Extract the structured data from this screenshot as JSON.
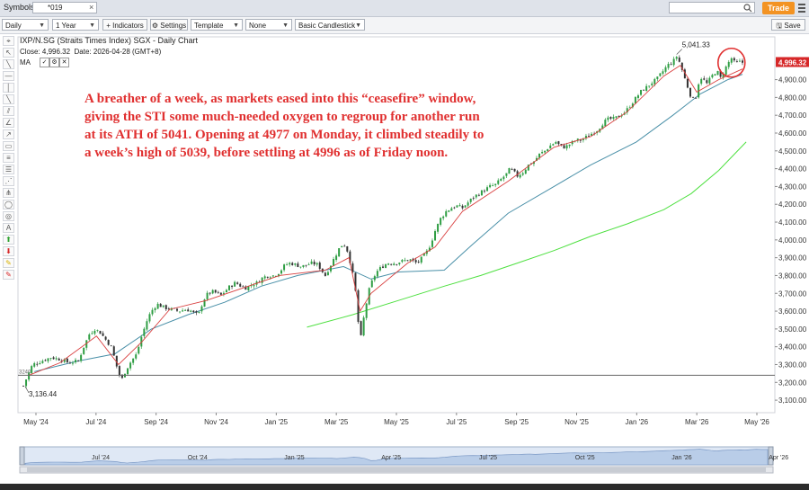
{
  "topbar": {
    "symbols_label": "Symbols:",
    "symbol_value": "*019",
    "close_glyph": "×",
    "search_placeholder": "",
    "trade_label": "Trade",
    "trade_color": "#f39323"
  },
  "toolbar": {
    "period": "Daily",
    "range": "1 Year",
    "indicators_label": "+ Indicators",
    "settings_label": "Settings",
    "template_label": "Template",
    "none_label": "None",
    "style_label": "Basic Candlestick",
    "save_label": "Save"
  },
  "chart_header": {
    "title": "IXP/N.SG (Straits Times Index) SGX - Daily Chart",
    "close_label": "Close:",
    "close_value": "4,996.32",
    "date_label": "Date:",
    "date_value": "2026-04-28 (GMT+8)",
    "ma_label": "MA"
  },
  "annotation": {
    "lines": [
      "A breather of a week, as markets eased into this “ceasefire” window,",
      "giving the STI some much-needed oxygen to regroup for another run",
      "at its ATH of 5041. Opening at 4977 on Monday, it climbed steadily to",
      "a week’s high of 5039, before settling at 4996 as of Friday noon."
    ],
    "color": "#e03030"
  },
  "chart_data": {
    "type": "candlestick",
    "y_ticks": [
      3100,
      3200,
      3300,
      3400,
      3500,
      3600,
      3700,
      3800,
      3900,
      4000,
      4100,
      4200,
      4300,
      4400,
      4500,
      4600,
      4700,
      4800,
      4900
    ],
    "y_tick_labels": [
      "3,100.00",
      "3,200.00",
      "3,300.00",
      "3,400.00",
      "3,500.00",
      "3,600.00",
      "3,700.00",
      "3,800.00",
      "3,900.00",
      "4,000.00",
      "4,100.00",
      "4,200.00",
      "4,300.00",
      "4,400.00",
      "4,500.00",
      "4,600.00",
      "4,700.00",
      "4,800.00",
      "4,900.00"
    ],
    "ylim": [
      3050,
      5120
    ],
    "x_ticks": [
      "May '24",
      "Jul '24",
      "Sep '24",
      "Nov '24",
      "Jan '25",
      "Mar '25",
      "May '25",
      "Jul '25",
      "Sep '25",
      "Nov '25",
      "Jan '26",
      "Mar '26",
      "May '26"
    ],
    "navigator_ticks": [
      "Jul '24",
      "Oct '24",
      "Jan '25",
      "Apr '25",
      "Jul '25",
      "Oct '25",
      "Jan '26",
      "Apr '26"
    ],
    "last_price_label": "4,996.32",
    "last_price": 4996.32,
    "high_label": "5,041.33",
    "high_value": 5041.33,
    "low_label": "3,136.44",
    "low_value": 3136.44,
    "ref_line_value": 3240,
    "ref_line_label": "3240",
    "close_path": [
      [
        0,
        3180
      ],
      [
        4,
        3230
      ],
      [
        10,
        3300
      ],
      [
        20,
        3320
      ],
      [
        30,
        3340
      ],
      [
        40,
        3330
      ],
      [
        50,
        3310
      ],
      [
        60,
        3320
      ],
      [
        66,
        3400
      ],
      [
        72,
        3470
      ],
      [
        78,
        3500
      ],
      [
        84,
        3480
      ],
      [
        90,
        3440
      ],
      [
        96,
        3400
      ],
      [
        100,
        3330
      ],
      [
        104,
        3250
      ],
      [
        108,
        3220
      ],
      [
        112,
        3270
      ],
      [
        118,
        3320
      ],
      [
        124,
        3360
      ],
      [
        128,
        3440
      ],
      [
        132,
        3500
      ],
      [
        136,
        3560
      ],
      [
        140,
        3600
      ],
      [
        146,
        3640
      ],
      [
        154,
        3620
      ],
      [
        162,
        3610
      ],
      [
        170,
        3600
      ],
      [
        178,
        3610
      ],
      [
        184,
        3600
      ],
      [
        188,
        3580
      ],
      [
        192,
        3590
      ],
      [
        196,
        3650
      ],
      [
        200,
        3690
      ],
      [
        206,
        3710
      ],
      [
        212,
        3700
      ],
      [
        216,
        3690
      ],
      [
        220,
        3710
      ],
      [
        226,
        3740
      ],
      [
        232,
        3760
      ],
      [
        238,
        3740
      ],
      [
        244,
        3730
      ],
      [
        250,
        3750
      ],
      [
        256,
        3760
      ],
      [
        262,
        3790
      ],
      [
        268,
        3800
      ],
      [
        274,
        3800
      ],
      [
        280,
        3820
      ],
      [
        286,
        3860
      ],
      [
        292,
        3870
      ],
      [
        298,
        3860
      ],
      [
        304,
        3850
      ],
      [
        310,
        3860
      ],
      [
        316,
        3870
      ],
      [
        322,
        3860
      ],
      [
        326,
        3830
      ],
      [
        330,
        3800
      ],
      [
        334,
        3840
      ],
      [
        338,
        3880
      ],
      [
        342,
        3920
      ],
      [
        346,
        3960
      ],
      [
        350,
        3980
      ],
      [
        354,
        3940
      ],
      [
        358,
        3860
      ],
      [
        362,
        3760
      ],
      [
        364,
        3660
      ],
      [
        366,
        3540
      ],
      [
        368,
        3440
      ],
      [
        370,
        3470
      ],
      [
        372,
        3560
      ],
      [
        374,
        3620
      ],
      [
        378,
        3720
      ],
      [
        382,
        3780
      ],
      [
        386,
        3820
      ],
      [
        392,
        3850
      ],
      [
        398,
        3870
      ],
      [
        406,
        3870
      ],
      [
        414,
        3880
      ],
      [
        422,
        3890
      ],
      [
        430,
        3870
      ],
      [
        436,
        3900
      ],
      [
        442,
        3940
      ],
      [
        446,
        3990
      ],
      [
        450,
        4050
      ],
      [
        456,
        4120
      ],
      [
        462,
        4160
      ],
      [
        468,
        4180
      ],
      [
        474,
        4190
      ],
      [
        480,
        4180
      ],
      [
        486,
        4210
      ],
      [
        492,
        4240
      ],
      [
        498,
        4260
      ],
      [
        504,
        4280
      ],
      [
        510,
        4300
      ],
      [
        516,
        4310
      ],
      [
        522,
        4340
      ],
      [
        528,
        4370
      ],
      [
        532,
        4400
      ],
      [
        536,
        4380
      ],
      [
        540,
        4360
      ],
      [
        546,
        4380
      ],
      [
        552,
        4420
      ],
      [
        558,
        4440
      ],
      [
        564,
        4480
      ],
      [
        570,
        4500
      ],
      [
        576,
        4530
      ],
      [
        582,
        4550
      ],
      [
        586,
        4530
      ],
      [
        592,
        4520
      ],
      [
        598,
        4540
      ],
      [
        604,
        4560
      ],
      [
        610,
        4560
      ],
      [
        616,
        4580
      ],
      [
        622,
        4600
      ],
      [
        628,
        4620
      ],
      [
        634,
        4660
      ],
      [
        640,
        4680
      ],
      [
        646,
        4680
      ],
      [
        652,
        4700
      ],
      [
        658,
        4720
      ],
      [
        664,
        4760
      ],
      [
        670,
        4800
      ],
      [
        676,
        4840
      ],
      [
        682,
        4860
      ],
      [
        686,
        4880
      ],
      [
        692,
        4900
      ],
      [
        698,
        4940
      ],
      [
        704,
        4980
      ],
      [
        710,
        5000
      ],
      [
        714,
        5030
      ],
      [
        718,
        4990
      ],
      [
        722,
        4920
      ],
      [
        726,
        4860
      ],
      [
        730,
        4800
      ],
      [
        734,
        4780
      ],
      [
        738,
        4880
      ],
      [
        742,
        4920
      ],
      [
        746,
        4870
      ],
      [
        750,
        4900
      ],
      [
        754,
        4930
      ],
      [
        758,
        4950
      ],
      [
        762,
        4910
      ],
      [
        766,
        4950
      ],
      [
        770,
        4990
      ],
      [
        774,
        5020
      ],
      [
        778,
        4990
      ],
      [
        782,
        5000
      ],
      [
        786,
        4996
      ]
    ],
    "ma_short_path": [
      [
        6,
        3240
      ],
      [
        40,
        3310
      ],
      [
        80,
        3460
      ],
      [
        104,
        3300
      ],
      [
        130,
        3430
      ],
      [
        160,
        3610
      ],
      [
        200,
        3660
      ],
      [
        240,
        3730
      ],
      [
        280,
        3800
      ],
      [
        330,
        3830
      ],
      [
        356,
        3900
      ],
      [
        368,
        3600
      ],
      [
        380,
        3700
      ],
      [
        420,
        3870
      ],
      [
        450,
        3960
      ],
      [
        480,
        4160
      ],
      [
        530,
        4330
      ],
      [
        580,
        4520
      ],
      [
        620,
        4580
      ],
      [
        660,
        4720
      ],
      [
        700,
        4920
      ],
      [
        718,
        4980
      ],
      [
        736,
        4830
      ],
      [
        760,
        4900
      ],
      [
        786,
        4960
      ]
    ],
    "ma_long_path": [
      [
        12,
        3260
      ],
      [
        60,
        3320
      ],
      [
        100,
        3360
      ],
      [
        140,
        3500
      ],
      [
        180,
        3580
      ],
      [
        220,
        3650
      ],
      [
        260,
        3740
      ],
      [
        300,
        3800
      ],
      [
        350,
        3850
      ],
      [
        380,
        3780
      ],
      [
        410,
        3820
      ],
      [
        460,
        3830
      ],
      [
        490,
        3970
      ],
      [
        530,
        4150
      ],
      [
        580,
        4300
      ],
      [
        620,
        4420
      ],
      [
        670,
        4550
      ],
      [
        710,
        4700
      ],
      [
        740,
        4820
      ],
      [
        770,
        4900
      ],
      [
        786,
        4930
      ]
    ],
    "ma_200_path": [
      [
        310,
        3510
      ],
      [
        360,
        3580
      ],
      [
        410,
        3660
      ],
      [
        460,
        3740
      ],
      [
        500,
        3800
      ],
      [
        540,
        3870
      ],
      [
        580,
        3940
      ],
      [
        620,
        4020
      ],
      [
        660,
        4090
      ],
      [
        700,
        4170
      ],
      [
        730,
        4260
      ],
      [
        760,
        4390
      ],
      [
        790,
        4550
      ]
    ],
    "series_colors": {
      "up": "#2f9e44",
      "down": "#333333",
      "ma_short": "#d94040",
      "ma_long": "#4a90a8",
      "ma_200": "#4ee040"
    }
  }
}
